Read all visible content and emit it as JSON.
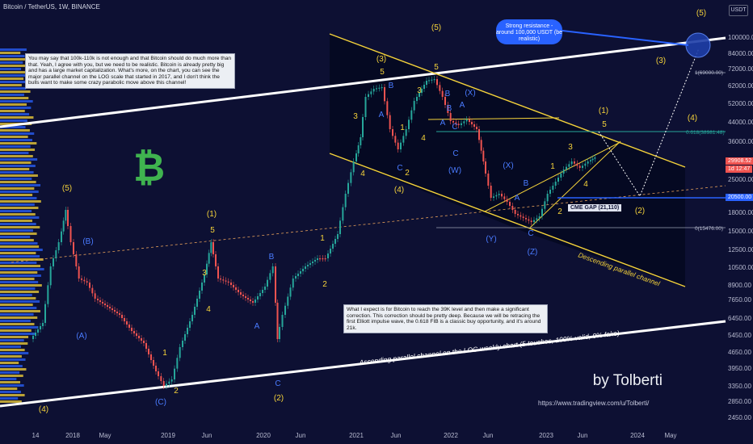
{
  "header": {
    "title": "Bitcoin / TetherUS, 1W, BINANCE",
    "currency": "USDT"
  },
  "notes": {
    "top_left": "You may say that 100k-110k is not enough and that Bitcoin should do much more than that. Yeah, I agree with you, but we need to be realistic. Bitcoin is already pretty big and has a large market capitalization. What's more, on the chart, you can see the major parallel channel on the LOG scale that started in 2017, and I don't think the bulls want to make some crazy parabolic move above this channel!",
    "middle": "What I expect is for Bitcoin to reach the 39K level and then make a significant correction. This correction should be pretty deep. Because we will be retracing the first Elliott impulse wave, the 0.618 FIB is a classic buy opportunity, and it's around 21k."
  },
  "annotations": {
    "resistance": "Strong resistance - around 100,000 USDT (be realistic)",
    "cme_gap": "CME GAP (21,110)",
    "ascending_channel": "Ascending parallel channel on the LOG weekly chart (5 touches, 100% valid, 0% fake)",
    "descending_channel": "Descending parallel channel",
    "fib_1": "1(69000.00)",
    "fib_0618": "0.618(38981.48)",
    "fib_0": "0(15476.00)"
  },
  "brand": {
    "name": "by Tolberti",
    "url": "https://www.tradingview.com/u/Tolberti/"
  },
  "current_price": {
    "value": "29908.52",
    "countdown": "1d 12:47",
    "level_line": "20500.00"
  },
  "price_axis": [
    "USDT",
    "100000.00",
    "84000.00",
    "72000.00",
    "62000.00",
    "52000.00",
    "44000.00",
    "36000.00",
    "30000.00",
    "25000.00",
    "20500.00",
    "18000.00",
    "15000.00",
    "12500.00",
    "10500.00",
    "8900.00",
    "7650.00",
    "6450.00",
    "5450.00",
    "4650.00",
    "3950.00",
    "3350.00",
    "2850.00",
    "2450.00"
  ],
  "time_axis": [
    "14",
    "2018",
    "May",
    "2019",
    "Jun",
    "2020",
    "Jun",
    "2021",
    "Jun",
    "2022",
    "Jun",
    "2023",
    "Jun",
    "2024",
    "May"
  ],
  "waves": [
    {
      "t": "(5)",
      "c": "y"
    },
    {
      "t": "(B)",
      "c": "b"
    },
    {
      "t": "(A)",
      "c": "b"
    },
    {
      "t": "(C)",
      "c": "b"
    },
    {
      "t": "(4)",
      "c": "y"
    },
    {
      "t": "1",
      "c": "y"
    },
    {
      "t": "2",
      "c": "y"
    },
    {
      "t": "(1)",
      "c": "y"
    },
    {
      "t": "5",
      "c": "y"
    },
    {
      "t": "3",
      "c": "y"
    },
    {
      "t": "4",
      "c": "y"
    },
    {
      "t": "B",
      "c": "b"
    },
    {
      "t": "A",
      "c": "b"
    },
    {
      "t": "C",
      "c": "b"
    },
    {
      "t": "(2)",
      "c": "y"
    },
    {
      "t": "1",
      "c": "y"
    },
    {
      "t": "2",
      "c": "y"
    },
    {
      "t": "(3)",
      "c": "y"
    },
    {
      "t": "5",
      "c": "y"
    },
    {
      "t": "3",
      "c": "y"
    },
    {
      "t": "B",
      "c": "b"
    },
    {
      "t": "A",
      "c": "b"
    },
    {
      "t": "1",
      "c": "y"
    },
    {
      "t": "4",
      "c": "y"
    },
    {
      "t": "C",
      "c": "b"
    },
    {
      "t": "2",
      "c": "y"
    },
    {
      "t": "(4)",
      "c": "y"
    },
    {
      "t": "(5)",
      "c": "y"
    },
    {
      "t": "5",
      "c": "y"
    },
    {
      "t": "3",
      "c": "y"
    },
    {
      "t": "B",
      "c": "b"
    },
    {
      "t": "A",
      "c": "b"
    },
    {
      "t": "C",
      "c": "b"
    },
    {
      "t": "(X)",
      "c": "b"
    },
    {
      "t": "4",
      "c": "y"
    },
    {
      "t": "B",
      "c": "b"
    },
    {
      "t": "C",
      "c": "b"
    },
    {
      "t": "(W)",
      "c": "b"
    },
    {
      "t": "A",
      "c": "b"
    },
    {
      "t": "(X)",
      "c": "b"
    },
    {
      "t": "B",
      "c": "b"
    },
    {
      "t": "A",
      "c": "b"
    },
    {
      "t": "(Y)",
      "c": "b"
    },
    {
      "t": "C",
      "c": "b"
    },
    {
      "t": "(Z)",
      "c": "b"
    },
    {
      "t": "1",
      "c": "y"
    },
    {
      "t": "2",
      "c": "y"
    },
    {
      "t": "3",
      "c": "y"
    },
    {
      "t": "4",
      "c": "y"
    },
    {
      "t": "(1)",
      "c": "y"
    },
    {
      "t": "5",
      "c": "y"
    },
    {
      "t": "(2)",
      "c": "y"
    },
    {
      "t": "(3)",
      "c": "y"
    },
    {
      "t": "(4)",
      "c": "y"
    },
    {
      "t": "(5)",
      "c": "y"
    }
  ],
  "colors": {
    "background": "#0d1033",
    "bull_candle": "#26a69a",
    "bear_candle": "#ef5350",
    "channel_line": "#ffffff",
    "desc_channel": "#f5d33a",
    "wave_yellow": "#f5d33a",
    "wave_blue": "#4a7bff",
    "fib_line": "#26a69a",
    "level_blue": "#2962ff",
    "btc_logo": "#3fb34f"
  },
  "icons": {
    "btc_logo": "bitcoin-icon",
    "target_circle": "target-circle-icon"
  }
}
